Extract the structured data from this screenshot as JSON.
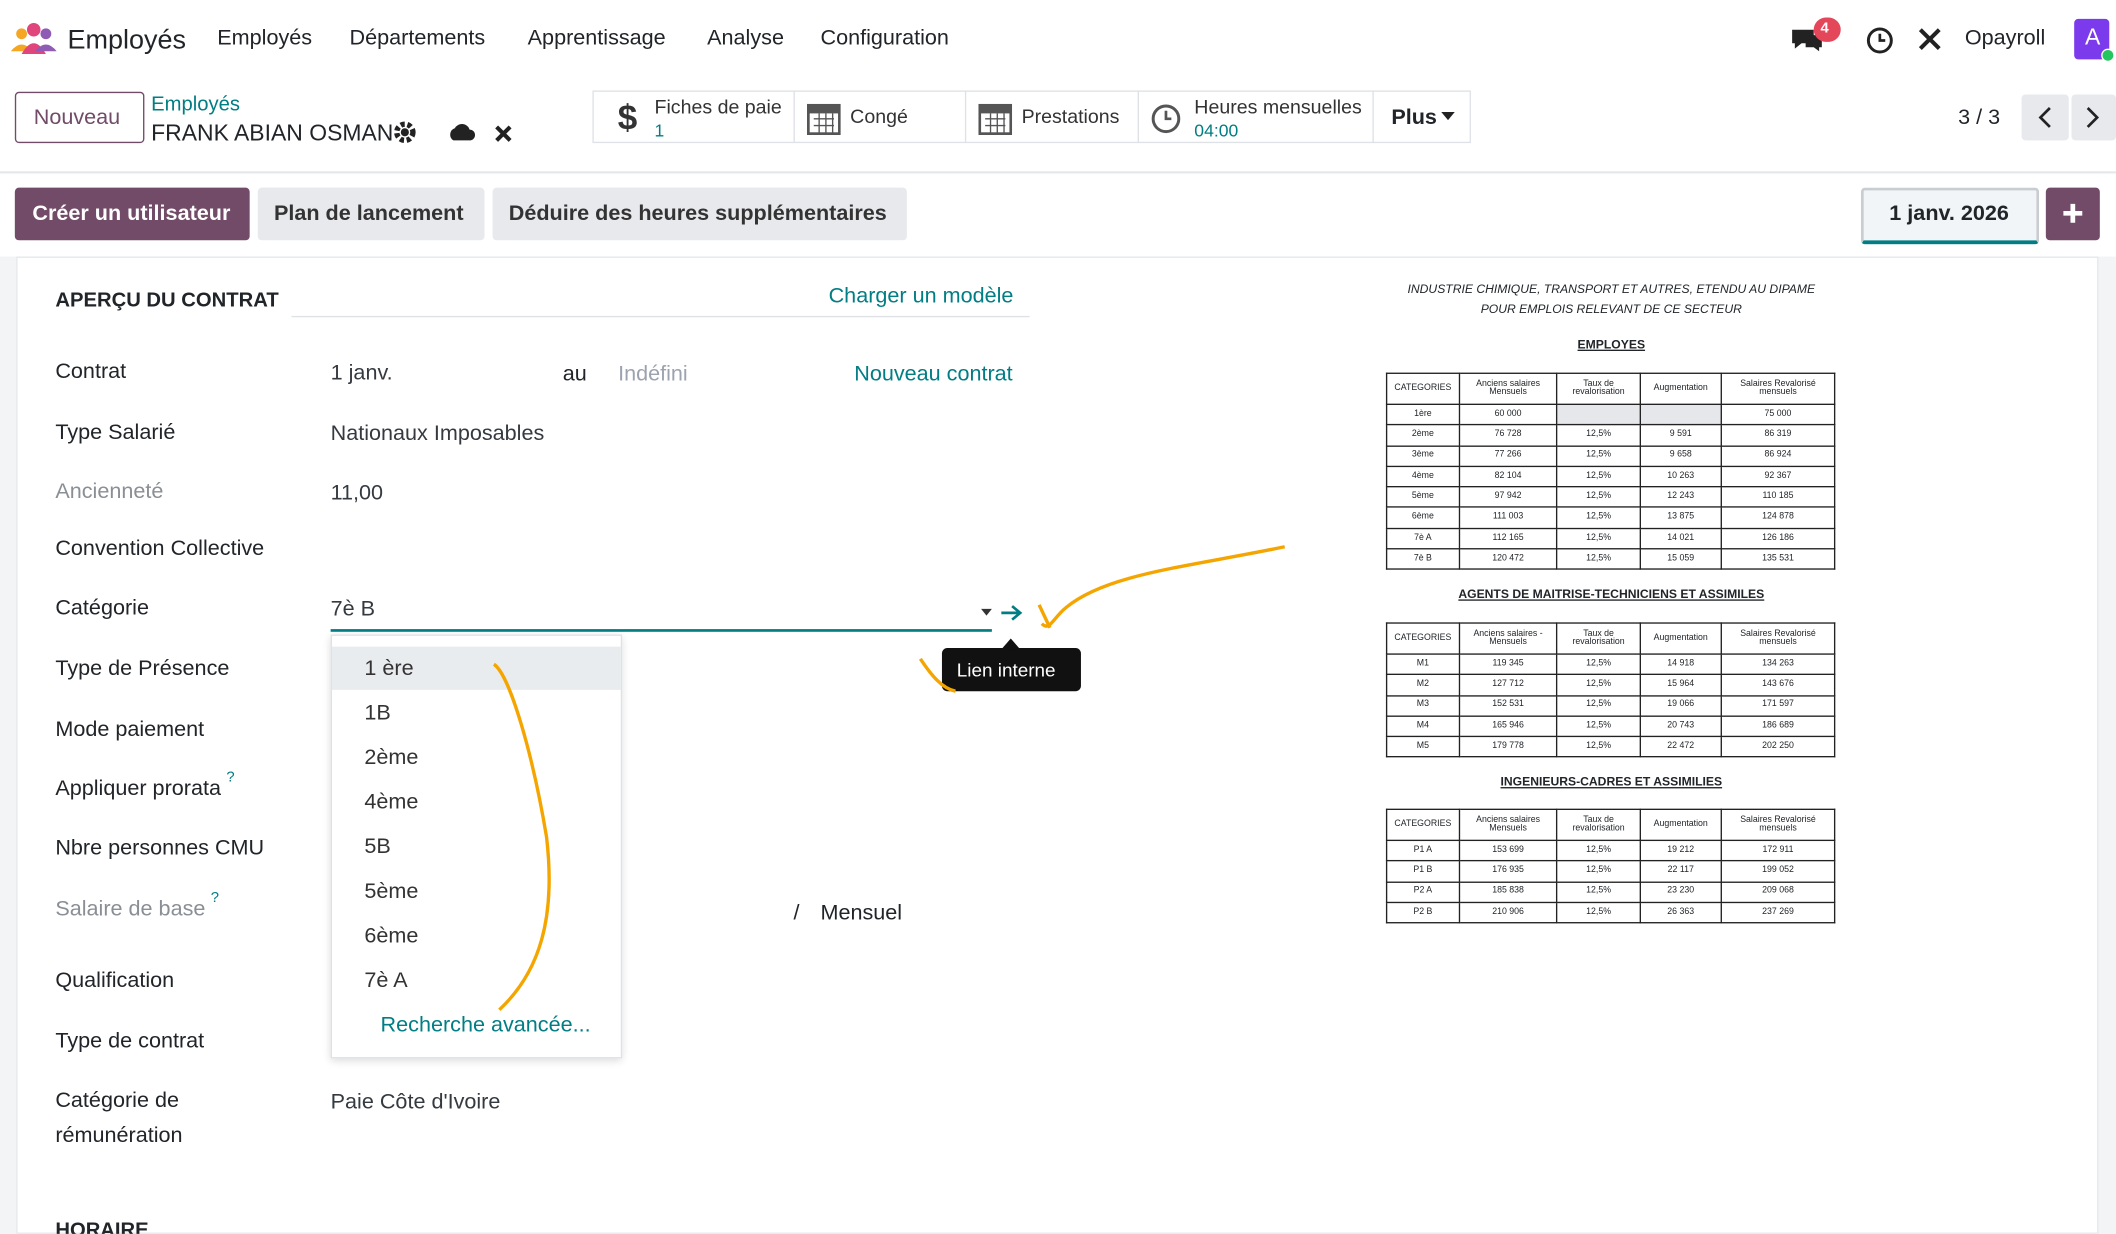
{
  "navbar": {
    "app": "Employés",
    "menu": [
      "Employés",
      "Départements",
      "Apprentissage",
      "Analyse",
      "Configuration"
    ],
    "notifications": "4",
    "company": "Opayroll",
    "avatar": "A"
  },
  "control_panel": {
    "new_button": "Nouveau",
    "breadcrumb": "Employés",
    "record": "FRANK ABIAN OSMAN",
    "smart_buttons": [
      {
        "label": "Fiches de paie",
        "value": "1"
      },
      {
        "label": "Congé"
      },
      {
        "label": "Prestations"
      },
      {
        "label": "Heures mensuelles",
        "value": "04:00"
      }
    ],
    "more": "Plus",
    "pager": "3 / 3"
  },
  "actions": {
    "buttons": [
      "Créer un utilisateur",
      "Plan de lancement",
      "Déduire des heures supplémentaires"
    ],
    "date": "1 janv. 2026"
  },
  "form": {
    "section": "APERÇU DU CONTRAT",
    "load_template": "Charger un modèle",
    "contract_to": "au",
    "contract_end": "Indéfini",
    "new_contract": "Nouveau contrat",
    "fields": [
      {
        "label": "Contrat",
        "value": "1 janv."
      },
      {
        "label": "Type Salarié",
        "value": "Nationaux Imposables"
      },
      {
        "label": "Ancienneté",
        "value": "11,00"
      },
      {
        "label": "Convention Collective"
      },
      {
        "label": "Catégorie",
        "value": "7è B"
      },
      {
        "label": "Type de Présence"
      },
      {
        "label": "Mode paiement"
      },
      {
        "label": "Appliquer prorata",
        "help": "?"
      },
      {
        "label": "Nbre personnes CMU"
      },
      {
        "label": "Salaire de base",
        "help": "?"
      },
      {
        "label": "Qualification"
      },
      {
        "label": "Type de contrat"
      },
      {
        "label": "Catégorie de rémunération",
        "value": "Paie Côte d'Ivoire"
      }
    ],
    "salary_sep": "/",
    "salary_period": "Mensuel",
    "dropdown": [
      "1 ère",
      "1B",
      "2ème",
      "4ème",
      "5B",
      "5ème",
      "6ème",
      "7è A"
    ],
    "advanced_search": "Recherche avancée...",
    "tooltip": "Lien interne",
    "next_section": "HORAIRE"
  },
  "document": {
    "title": [
      "INDUSTRIE CHIMIQUE, TRANSPORT ET AUTRES, ETENDU AU DIPAME",
      "POUR EMPLOIS RELEVANT DE CE SECTEUR"
    ],
    "tables": [
      {
        "heading": "EMPLOYES",
        "columns": [
          "CATEGORIES",
          "Anciens salaires Mensuels",
          "Taux de revalorisation",
          "Augmentation",
          "Salaires Revalorisé mensuels"
        ],
        "rows": [
          [
            "1ère",
            "60 000",
            null,
            null,
            "75 000"
          ],
          [
            "2ème",
            "76 728",
            "12,5%",
            "9 591",
            "86 319"
          ],
          [
            "3ème",
            "77 266",
            "12,5%",
            "9 658",
            "86 924"
          ],
          [
            "4ème",
            "82 104",
            "12,5%",
            "10 263",
            "92 367"
          ],
          [
            "5ème",
            "97 942",
            "12,5%",
            "12 243",
            "110 185"
          ],
          [
            "6ème",
            "111 003",
            "12,5%",
            "13 875",
            "124 878"
          ],
          [
            "7è A",
            "112 165",
            "12,5%",
            "14 021",
            "126 186"
          ],
          [
            "7è B",
            "120 472",
            "12,5%",
            "15 059",
            "135 531"
          ]
        ]
      },
      {
        "heading": "AGENTS DE MAITRISE-TECHNICIENS ET ASSIMILES",
        "columns": [
          "CATEGORIES",
          "Anciens salaires - Mensuels",
          "Taux de revalorisation",
          "Augmentation",
          "Salaires Revalorisé mensuels"
        ],
        "rows": [
          [
            "M1",
            "119 345",
            "12,5%",
            "14 918",
            "134 263"
          ],
          [
            "M2",
            "127 712",
            "12,5%",
            "15 964",
            "143 676"
          ],
          [
            "M3",
            "152 531",
            "12,5%",
            "19 066",
            "171 597"
          ],
          [
            "M4",
            "165 946",
            "12,5%",
            "20 743",
            "186 689"
          ],
          [
            "M5",
            "179 778",
            "12,5%",
            "22 472",
            "202 250"
          ]
        ]
      },
      {
        "heading": "INGENIEURS-CADRES ET ASSIMILIES",
        "columns": [
          "CATEGORIES",
          "Anciens salaires Mensuels",
          "Taux de revalorisation",
          "Augmentation",
          "Salaires Revalorisé mensuels"
        ],
        "rows": [
          [
            "P1 A",
            "153 699",
            "12,5%",
            "19 212",
            "172 911"
          ],
          [
            "P1 B",
            "176 935",
            "12,5%",
            "22 117",
            "199 052"
          ],
          [
            "P2 A",
            "185 838",
            "12,5%",
            "23 230",
            "209 068"
          ],
          [
            "P2 B",
            "210 906",
            "12,5%",
            "26 363",
            "237 269"
          ]
        ]
      }
    ]
  }
}
